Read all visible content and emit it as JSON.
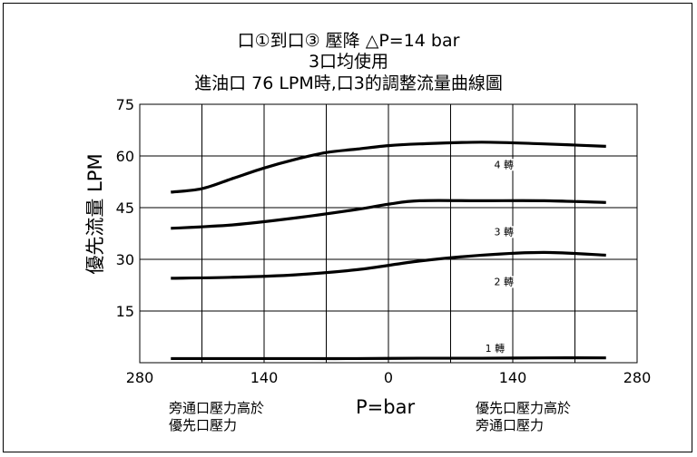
{
  "chart_data": {
    "type": "line",
    "title_lines": [
      "口①到口③ 壓降 △P=14 bar",
      "3口均使用",
      "進油口 76 LPM時,口3的調整流量曲線圖"
    ],
    "xlabel": "P=bar",
    "ylabel": "優先流量 LPM",
    "x_ticks": [
      {
        "value": -280,
        "label": "280"
      },
      {
        "value": -140,
        "label": "140"
      },
      {
        "value": 0,
        "label": "0"
      },
      {
        "value": 140,
        "label": "140"
      },
      {
        "value": 280,
        "label": "280"
      }
    ],
    "y_ticks": [
      15,
      30,
      45,
      60,
      75
    ],
    "xlim": [
      -280,
      280
    ],
    "ylim": [
      0,
      75
    ],
    "grid": true,
    "x_region_notes": {
      "left": [
        "旁通口壓力高於",
        "優先口壓力"
      ],
      "right": [
        "優先口壓力高於",
        "旁通口壓力"
      ]
    },
    "series": [
      {
        "name": "1 轉",
        "label_x": 120,
        "label_y": 3.2,
        "x": [
          -245,
          -175,
          -105,
          -35,
          35,
          105,
          175,
          245
        ],
        "y": [
          1.2,
          1.2,
          1.2,
          1.2,
          1.3,
          1.3,
          1.4,
          1.4
        ]
      },
      {
        "name": "2 轉",
        "label_x": 130,
        "label_y": 22.5,
        "x": [
          -245,
          -175,
          -105,
          -35,
          35,
          105,
          175,
          245
        ],
        "y": [
          24.5,
          24.8,
          25.5,
          27,
          29.5,
          31.2,
          32,
          31.2
        ]
      },
      {
        "name": "3 轉",
        "label_x": 130,
        "label_y": 37,
        "x": [
          -245,
          -175,
          -105,
          -35,
          0,
          35,
          105,
          175,
          245
        ],
        "y": [
          39,
          40,
          42,
          44.5,
          46,
          47,
          47,
          47,
          46.5
        ]
      },
      {
        "name": "4 轉",
        "label_x": 130,
        "label_y": 56.5,
        "x": [
          -245,
          -210,
          -175,
          -140,
          -105,
          -70,
          -35,
          0,
          35,
          105,
          175,
          245
        ],
        "y": [
          49.5,
          50.5,
          53.5,
          56.5,
          59,
          61,
          62,
          63,
          63.5,
          64,
          63.5,
          62.8
        ]
      }
    ]
  }
}
